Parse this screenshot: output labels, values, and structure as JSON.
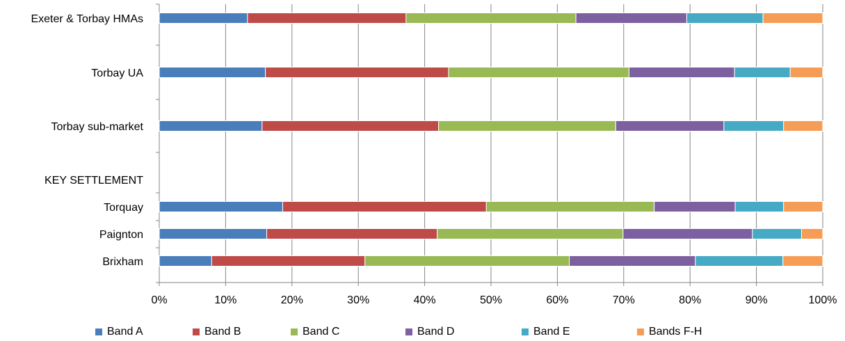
{
  "chart_data": {
    "type": "bar",
    "orientation": "horizontal",
    "stacked": "percent",
    "title": "",
    "xlabel": "",
    "ylabel": "",
    "xlim": [
      0,
      100
    ],
    "grid": true,
    "legend_position": "bottom",
    "categories": [
      "Exeter & Torbay HMAs",
      "Torbay UA",
      "Torbay sub-market",
      "KEY SETTLEMENT",
      "Torquay",
      "Paignton",
      "Brixham"
    ],
    "x_ticks": [
      "0%",
      "10%",
      "20%",
      "30%",
      "40%",
      "50%",
      "60%",
      "70%",
      "80%",
      "90%",
      "100%"
    ],
    "series": [
      {
        "name": "Band A",
        "color": "#4A7EBB",
        "values": [
          13.3,
          16.0,
          15.5,
          null,
          18.6,
          16.2,
          7.9
        ]
      },
      {
        "name": "Band B",
        "color": "#BE4B48",
        "values": [
          23.9,
          27.6,
          26.6,
          null,
          30.7,
          25.7,
          23.1
        ]
      },
      {
        "name": "Band C",
        "color": "#98B954",
        "values": [
          25.6,
          27.2,
          26.7,
          null,
          25.3,
          28.0,
          30.8
        ]
      },
      {
        "name": "Band D",
        "color": "#7D60A0",
        "values": [
          16.7,
          15.9,
          16.3,
          null,
          12.2,
          19.5,
          19.0
        ]
      },
      {
        "name": "Band E",
        "color": "#46AAC5",
        "values": [
          11.5,
          8.4,
          9.0,
          null,
          7.3,
          7.4,
          13.2
        ]
      },
      {
        "name": "Bands F-H",
        "color": "#F59D56",
        "values": [
          9.0,
          4.9,
          5.9,
          null,
          5.9,
          3.2,
          6.0
        ]
      }
    ]
  }
}
